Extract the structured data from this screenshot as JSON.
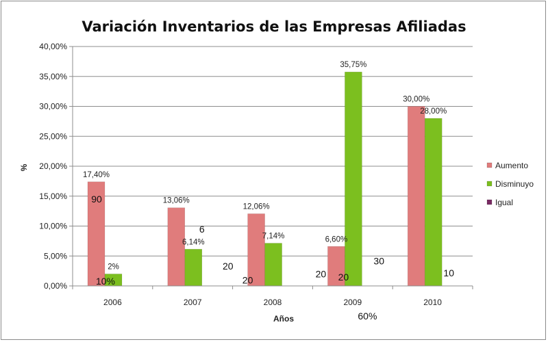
{
  "chart_data": {
    "type": "bar",
    "title": "Variación Inventarios de las Empresas Afiliadas",
    "xlabel": "Años",
    "ylabel": "%",
    "ylim": [
      0,
      40
    ],
    "yticks": [
      "0,00%",
      "5,00%",
      "10,00%",
      "15,00%",
      "20,00%",
      "25,00%",
      "30,00%",
      "35,00%",
      "40,00%"
    ],
    "categories": [
      "2006",
      "2007",
      "2008",
      "2009",
      "2010"
    ],
    "series": [
      {
        "name": "Aumento",
        "color": "#e07c7c",
        "values": [
          17.4,
          13.06,
          12.06,
          6.6,
          30.0
        ],
        "labels": [
          "17,40%",
          "13,06%",
          "12,06%",
          "6,60%",
          "30,00%"
        ]
      },
      {
        "name": "Disminuyo",
        "color": "#7cbf1f",
        "values": [
          2,
          6.14,
          7.14,
          35.75,
          28.0
        ],
        "labels": [
          "2%",
          "6,14%",
          "7,14%",
          "35,75%",
          "28,00%"
        ]
      },
      {
        "name": "Igual",
        "color": "#7a2b63",
        "values": [
          0,
          0,
          0,
          0,
          0
        ],
        "labels": [
          "",
          "",
          "",
          "",
          ""
        ]
      }
    ],
    "legend_position": "right",
    "grid": true,
    "annotations": [
      {
        "text": "90",
        "x": "2006",
        "y": 14.5
      },
      {
        "text": "10%",
        "x": "2006",
        "y": 0.8
      },
      {
        "text": "6",
        "x": "2007",
        "y": 9.5
      },
      {
        "text": "20",
        "x": "2007",
        "y": 3.3
      },
      {
        "text": "20",
        "x": "2008",
        "y": 1.0
      },
      {
        "text": "20",
        "x": "2009",
        "y": 2.0
      },
      {
        "text": "20",
        "x": "2009",
        "y": 1.5
      },
      {
        "text": "30",
        "x": "2010",
        "y": 4.2
      },
      {
        "text": "10",
        "x": "2010",
        "y": 2.2
      },
      {
        "text": "60%",
        "x": "2009",
        "y": -5.0
      }
    ]
  }
}
